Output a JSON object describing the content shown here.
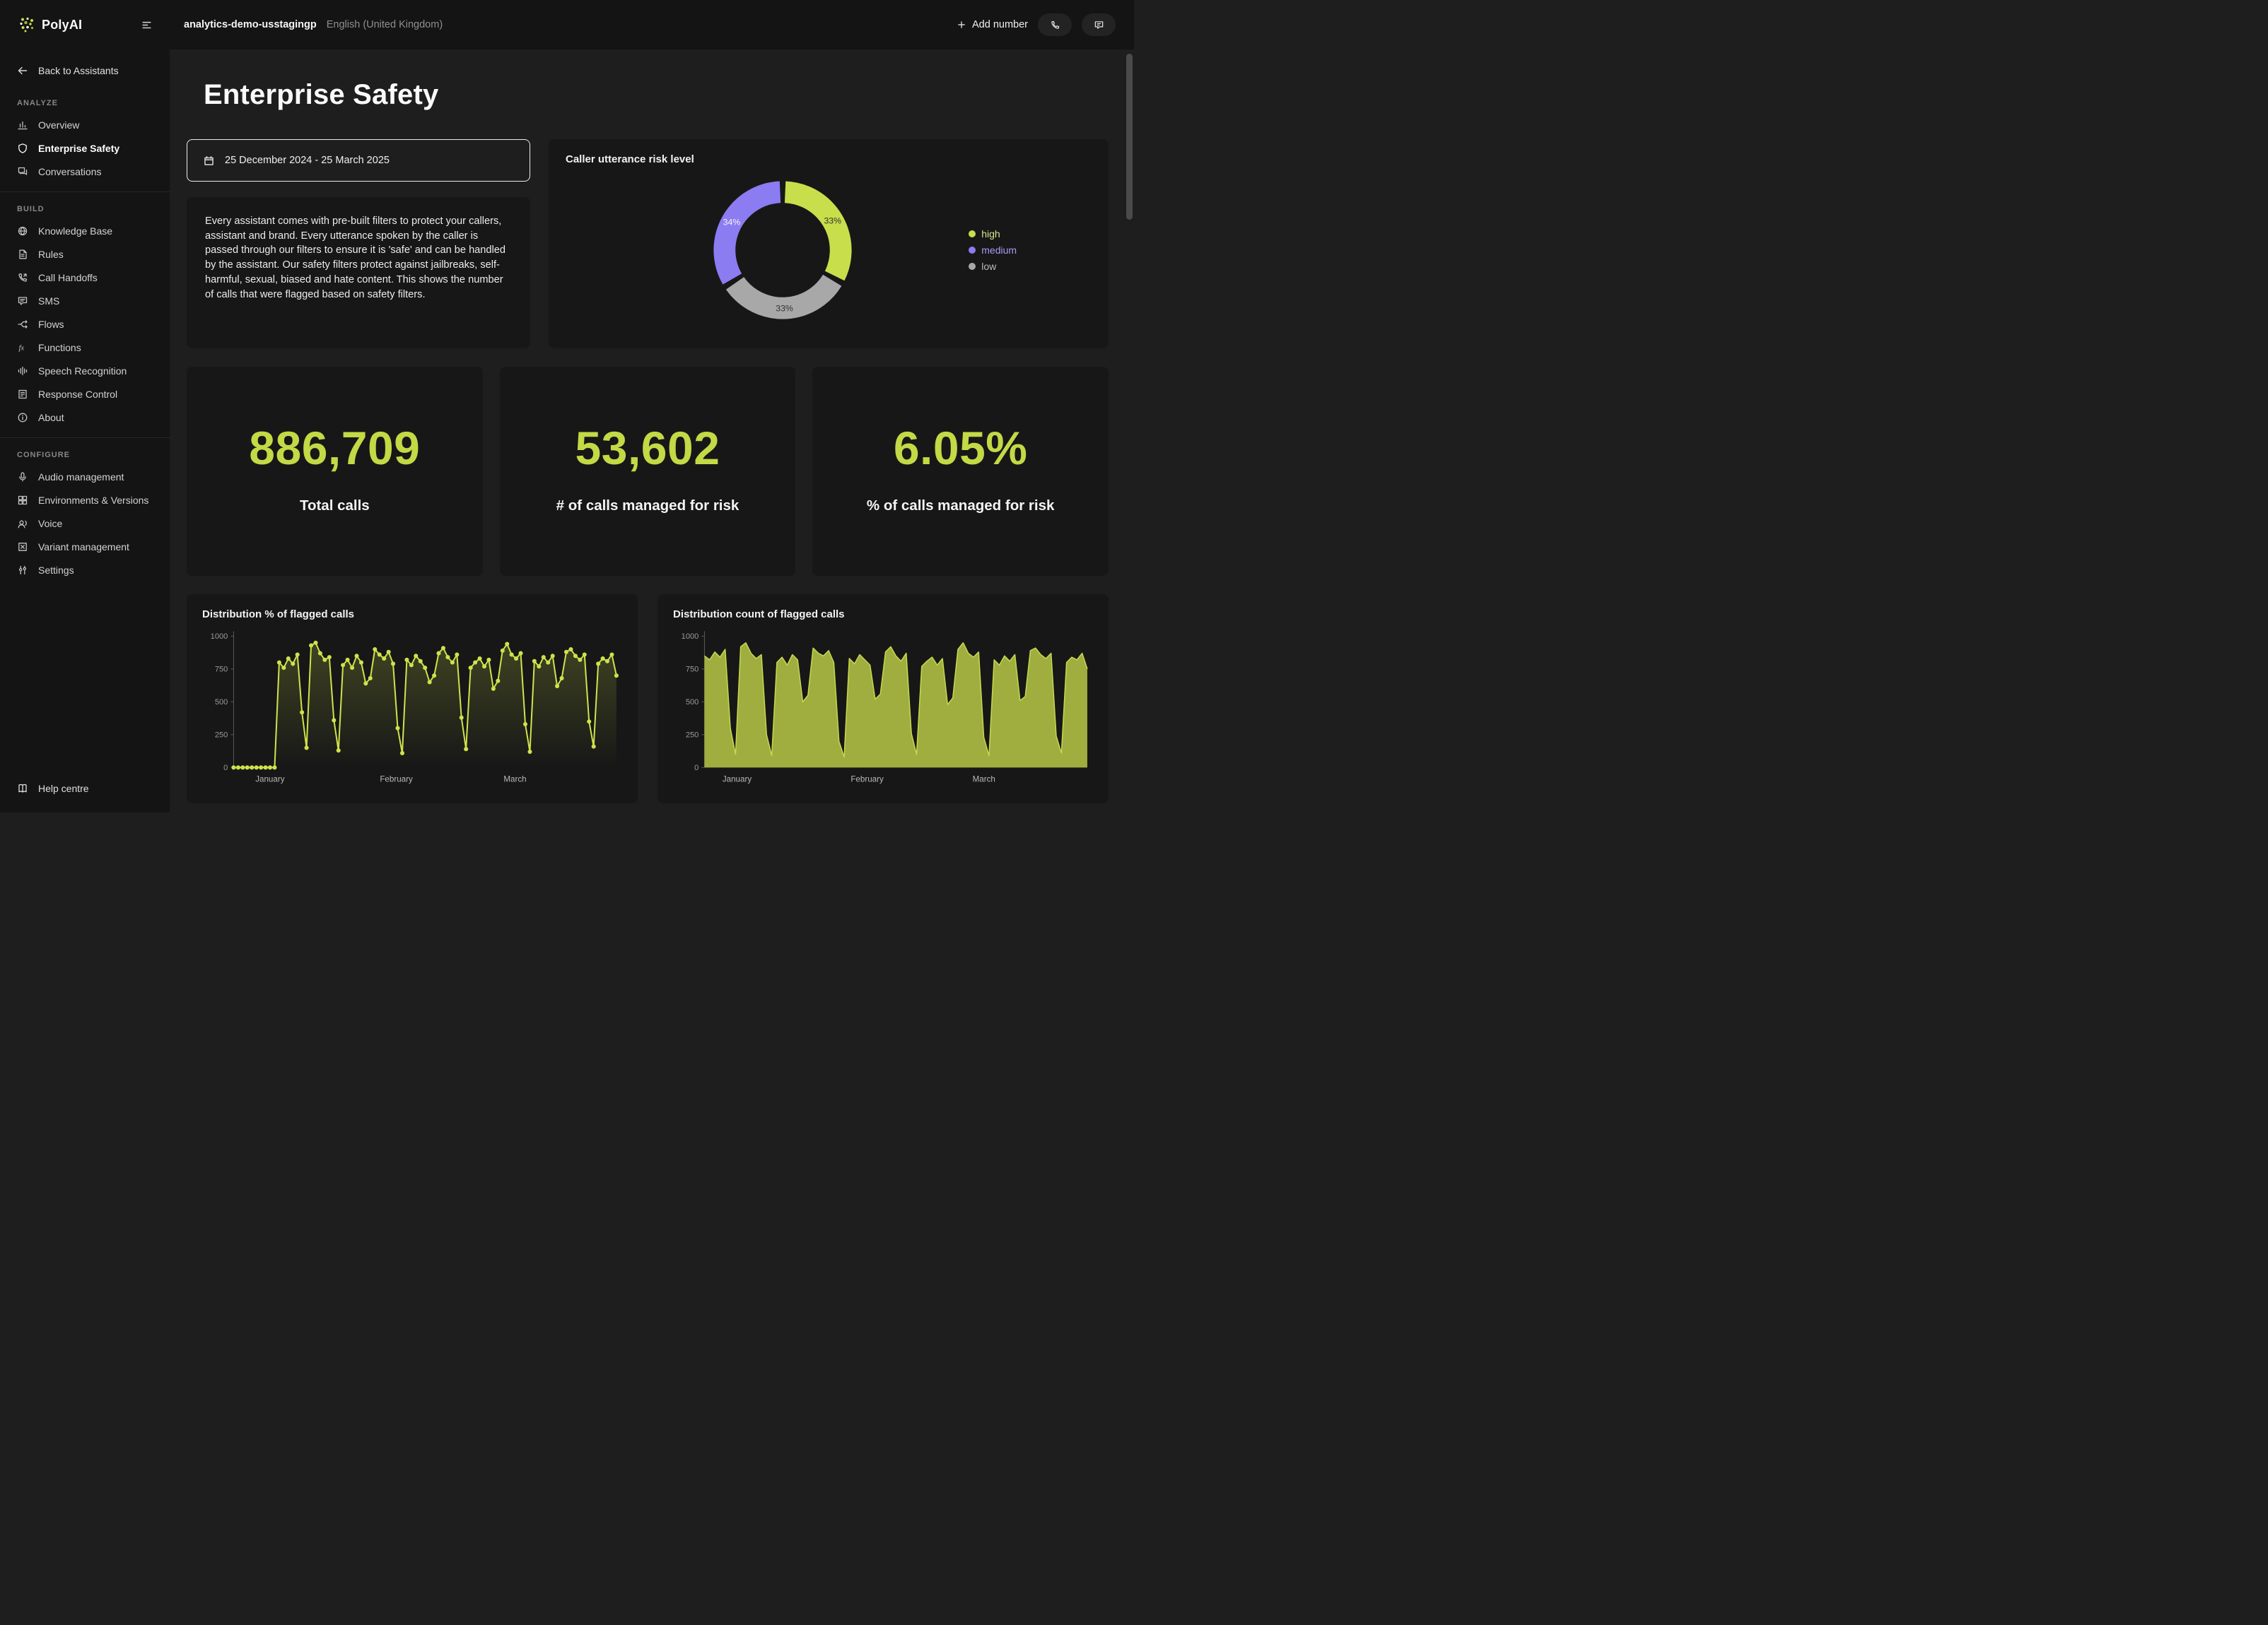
{
  "header": {
    "brand": "PolyAI",
    "assistant_name": "analytics-demo-usstagingp",
    "locale": "English (United Kingdom)",
    "add_number_label": "Add number"
  },
  "sidebar": {
    "back_label": "Back to Assistants",
    "help_label": "Help centre",
    "sections": [
      {
        "label": "ANALYZE",
        "items": [
          {
            "label": "Overview",
            "icon": "bar-chart-icon",
            "active": false
          },
          {
            "label": "Enterprise Safety",
            "icon": "shield-icon",
            "active": true
          },
          {
            "label": "Conversations",
            "icon": "chat-icon",
            "active": false
          }
        ]
      },
      {
        "label": "BUILD",
        "items": [
          {
            "label": "Knowledge Base",
            "icon": "knowledge-icon",
            "active": false
          },
          {
            "label": "Rules",
            "icon": "document-icon",
            "active": false
          },
          {
            "label": "Call Handoffs",
            "icon": "phone-arrow-icon",
            "active": false
          },
          {
            "label": "SMS",
            "icon": "sms-icon",
            "active": false
          },
          {
            "label": "Flows",
            "icon": "flow-icon",
            "active": false
          },
          {
            "label": "Functions",
            "icon": "fx-icon",
            "active": false
          },
          {
            "label": "Speech Recognition",
            "icon": "waveform-icon",
            "active": false
          },
          {
            "label": "Response Control",
            "icon": "response-icon",
            "active": false
          },
          {
            "label": "About",
            "icon": "info-icon",
            "active": false
          }
        ]
      },
      {
        "label": "CONFIGURE",
        "items": [
          {
            "label": "Audio management",
            "icon": "mic-icon",
            "active": false
          },
          {
            "label": "Environments & Versions",
            "icon": "boxes-icon",
            "active": false
          },
          {
            "label": "Voice",
            "icon": "voice-icon",
            "active": false
          },
          {
            "label": "Variant management",
            "icon": "variant-icon",
            "active": false
          },
          {
            "label": "Settings",
            "icon": "sliders-icon",
            "active": false
          }
        ]
      }
    ]
  },
  "page": {
    "title": "Enterprise Safety",
    "date_range": "25 December 2024 - 25 March 2025",
    "description": "Every assistant comes with pre-built filters to protect your callers, assistant and brand. Every utterance spoken by the caller is passed through our filters to ensure it is 'safe' and can be handled by the assistant. Our safety filters protect against jailbreaks, self-harmful, sexual, biased and hate content. This shows the number of calls that were flagged based on safety filters."
  },
  "stats": [
    {
      "value": "886,709",
      "label": "Total calls"
    },
    {
      "value": "53,602",
      "label": "# of calls managed for risk"
    },
    {
      "value": "6.05%",
      "label": "% of calls managed for risk"
    }
  ],
  "colors": {
    "accent": "#c3d945",
    "purple": "#8b7cf2",
    "gray": "#a8a8a8",
    "card_bg": "#171717",
    "page_bg": "#1e1e1e",
    "sidebar_bg": "#141414"
  },
  "chart_data": [
    {
      "type": "pie",
      "donut": true,
      "title": "Caller utterance risk level",
      "legend_position": "right",
      "draw_order": [
        0,
        2,
        1
      ],
      "slices": [
        {
          "label": "high",
          "value": 33,
          "color": "#c9de4b",
          "label_color": "#333333",
          "legend_text_color": "#d9e590"
        },
        {
          "label": "medium",
          "value": 34,
          "color": "#8b7cf2",
          "label_color": "#f5f5f5",
          "legend_text_color": "#a89df2"
        },
        {
          "label": "low",
          "value": 33,
          "color": "#a8a8a8",
          "label_color": "#333333",
          "legend_text_color": "#bdbdbd"
        }
      ]
    },
    {
      "type": "line",
      "title": "Distribution % of flagged calls",
      "color": "#cfe24a",
      "markers": true,
      "ylim": [
        0,
        1000
      ],
      "yticks": [
        0,
        250,
        500,
        750,
        1000
      ],
      "x_axis_labels": [
        {
          "label": "January",
          "pos": 0.095
        },
        {
          "label": "February",
          "pos": 0.425
        },
        {
          "label": "March",
          "pos": 0.735
        }
      ],
      "values": [
        0,
        0,
        0,
        0,
        0,
        0,
        0,
        0,
        0,
        0,
        800,
        760,
        830,
        790,
        860,
        420,
        150,
        930,
        950,
        870,
        820,
        840,
        360,
        130,
        780,
        820,
        760,
        850,
        800,
        640,
        680,
        900,
        860,
        830,
        880,
        790,
        300,
        110,
        820,
        780,
        850,
        810,
        760,
        650,
        700,
        870,
        910,
        840,
        800,
        860,
        380,
        140,
        760,
        800,
        830,
        770,
        820,
        600,
        660,
        890,
        940,
        860,
        830,
        870,
        330,
        120,
        810,
        770,
        840,
        800,
        850,
        620,
        680,
        880,
        900,
        850,
        820,
        860,
        350,
        160,
        790,
        830,
        810,
        860,
        700
      ]
    },
    {
      "type": "area",
      "title": "Distribution count of flagged calls",
      "color": "#c6d84e",
      "fill_color": "#9fae3f",
      "markers": false,
      "ylim": [
        0,
        1000
      ],
      "yticks": [
        0,
        250,
        500,
        750,
        1000
      ],
      "x_axis_labels": [
        {
          "label": "January",
          "pos": 0.085
        },
        {
          "label": "February",
          "pos": 0.425
        },
        {
          "label": "March",
          "pos": 0.73
        }
      ],
      "values": [
        850,
        820,
        880,
        840,
        900,
        300,
        100,
        920,
        950,
        870,
        830,
        860,
        250,
        90,
        800,
        840,
        780,
        860,
        820,
        500,
        550,
        910,
        870,
        850,
        890,
        800,
        200,
        80,
        830,
        790,
        860,
        820,
        780,
        520,
        560,
        880,
        920,
        850,
        810,
        870,
        260,
        100,
        770,
        810,
        840,
        780,
        830,
        480,
        530,
        900,
        950,
        870,
        840,
        880,
        230,
        90,
        820,
        780,
        850,
        810,
        860,
        510,
        540,
        890,
        910,
        860,
        830,
        870,
        240,
        110,
        800,
        840,
        820,
        870,
        750
      ]
    }
  ]
}
